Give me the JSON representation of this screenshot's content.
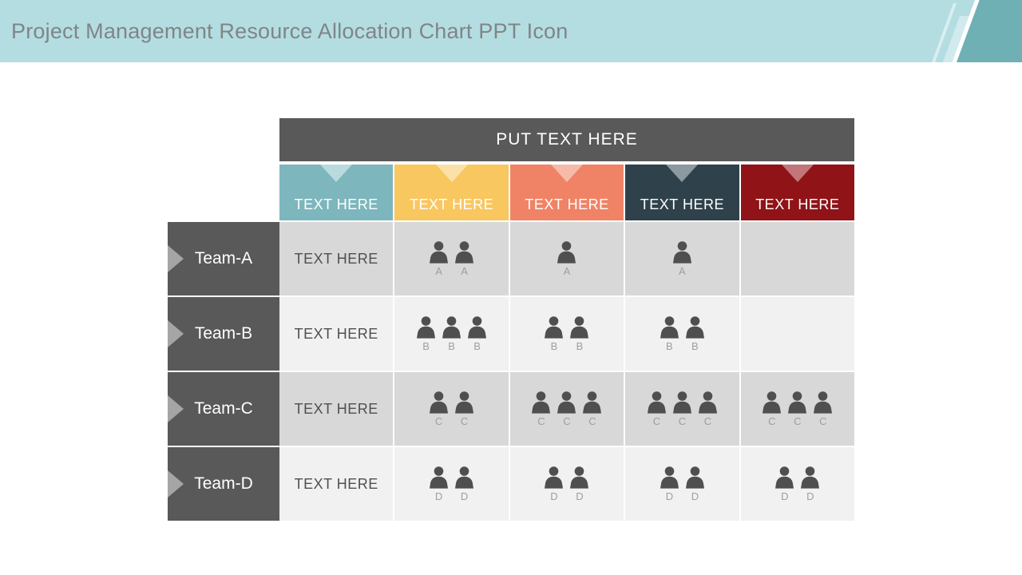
{
  "header": {
    "title": "Project Management Resource Allocation Chart PPT Icon",
    "bar_color": "#B4DDE2",
    "accent_color": "#6FB0B5",
    "title_color": "#808587"
  },
  "table": {
    "banner_label": "PUT TEXT HERE",
    "banner_bg": "#595959",
    "row_header_bg": "#595959",
    "row_arrow_color": "#A5A5A5",
    "icon_color": "#4F4F4F",
    "letter_color": "#9E9E9E",
    "cell_text_color": "#4F4F4F",
    "columns": [
      {
        "label": "TEXT HERE",
        "bg": "#7DB6BD",
        "triangle": "#B9DBDE"
      },
      {
        "label": "TEXT HERE",
        "bg": "#F9C75F",
        "triangle": "#FBE1A8"
      },
      {
        "label": "TEXT HERE",
        "bg": "#F08366",
        "triangle": "#F6BBA8"
      },
      {
        "label": "TEXT HERE",
        "bg": "#2F424B",
        "triangle": "#8C999F"
      },
      {
        "label": "TEXT HERE",
        "bg": "#8F1317",
        "triangle": "#C0767A"
      }
    ],
    "rows": [
      {
        "team": "Team-A",
        "first_cell": "TEXT HERE",
        "member_letter": "A",
        "allocation": [
          2,
          1,
          1,
          0
        ],
        "bg": "#D8D8D8"
      },
      {
        "team": "Team-B",
        "first_cell": "TEXT HERE",
        "member_letter": "B",
        "allocation": [
          3,
          2,
          2,
          0
        ],
        "bg": "#F1F1F1"
      },
      {
        "team": "Team-C",
        "first_cell": "TEXT HERE",
        "member_letter": "C",
        "allocation": [
          2,
          3,
          3,
          3
        ],
        "bg": "#D8D8D8"
      },
      {
        "team": "Team-D",
        "first_cell": "TEXT HERE",
        "member_letter": "D",
        "allocation": [
          2,
          2,
          2,
          2
        ],
        "bg": "#F1F1F1"
      }
    ]
  },
  "chart_data": {
    "type": "table",
    "title": "PUT TEXT HERE",
    "row_labels": [
      "Team-A",
      "Team-B",
      "Team-C",
      "Team-D"
    ],
    "column_labels": [
      "TEXT HERE",
      "TEXT HERE",
      "TEXT HERE",
      "TEXT HERE",
      "TEXT HERE"
    ],
    "first_column_cell_text": "TEXT HERE",
    "person_counts_by_row": [
      [
        2,
        1,
        1,
        0
      ],
      [
        3,
        2,
        2,
        0
      ],
      [
        2,
        3,
        3,
        3
      ],
      [
        2,
        2,
        2,
        2
      ]
    ],
    "person_labels_by_row": [
      "A",
      "B",
      "C",
      "D"
    ],
    "unit": "persons"
  }
}
